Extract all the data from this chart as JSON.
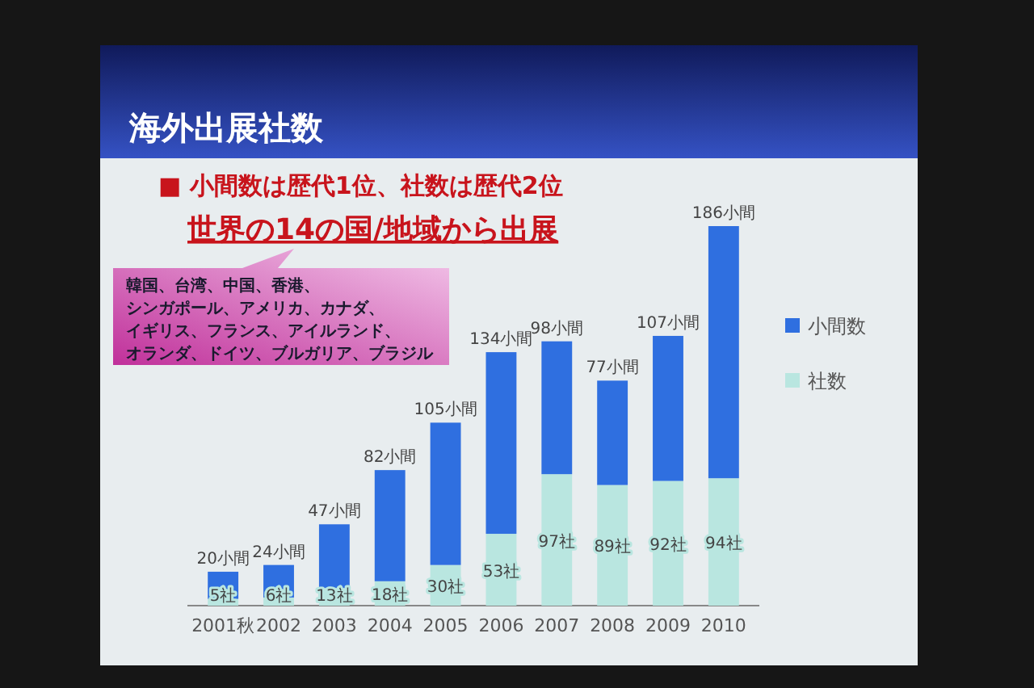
{
  "chart_data": {
    "type": "bar",
    "title": "海外出展社数",
    "stacked": true,
    "legend": "right",
    "categories": [
      "2001秋",
      "2002",
      "2003",
      "2004",
      "2005",
      "2006",
      "2007",
      "2008",
      "2009",
      "2010"
    ],
    "series": [
      {
        "name": "社数",
        "color": "#b9e6e0",
        "values": [
          5,
          6,
          13,
          18,
          30,
          53,
          97,
          89,
          92,
          94
        ],
        "value_labels": [
          "5社",
          "6社",
          "13社",
          "18社",
          "30社",
          "53社",
          "97社",
          "89社",
          "92社",
          "94社"
        ]
      },
      {
        "name": "小間数",
        "color": "#2f6fe0",
        "values": [
          20,
          24,
          47,
          82,
          105,
          134,
          98,
          77,
          107,
          186
        ],
        "value_labels": [
          "20小間",
          "24小間",
          "47小間",
          "82小間",
          "105小間",
          "134小間",
          "98小間",
          "77小間",
          "107小間",
          "186小間"
        ]
      }
    ],
    "annotations": [
      "■ 小間数は歴代1位、社数は歴代2位",
      "世界の14の国/地域から出展",
      "韓国、台湾、中国、香港、",
      "シンガポール、アメリカ、カナダ、",
      "イギリス、フランス、アイルランド、",
      "オランダ、ドイツ、ブルガリア、ブラジル"
    ]
  }
}
